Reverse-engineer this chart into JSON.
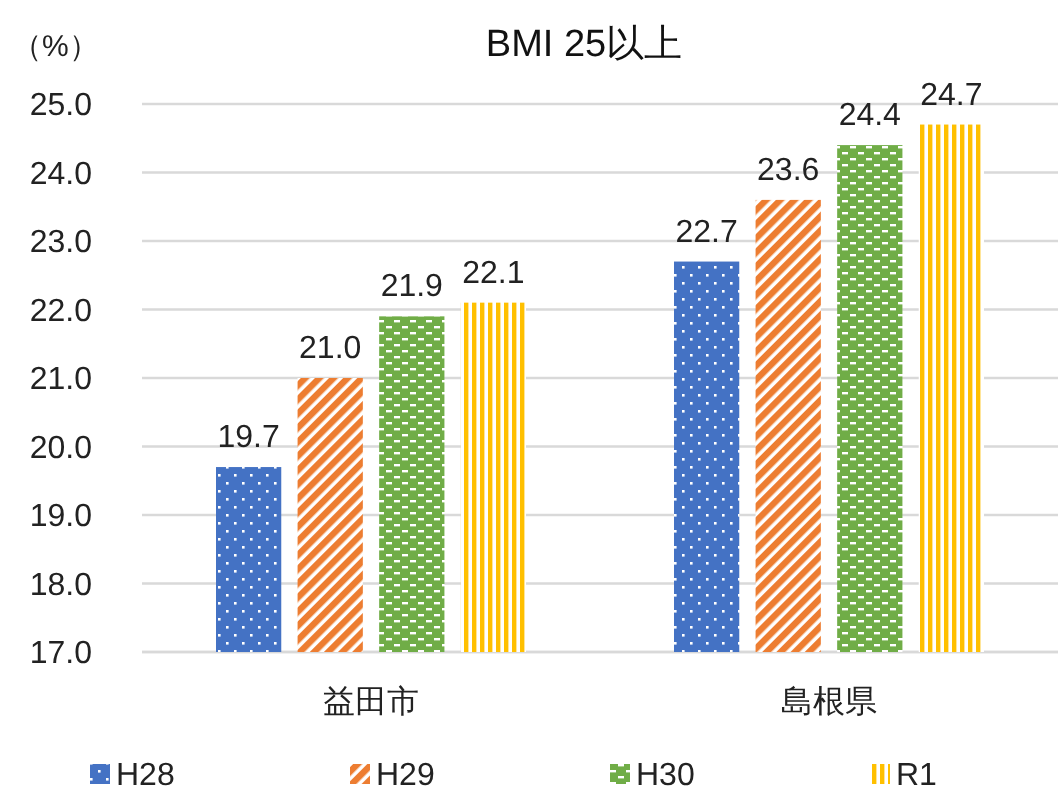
{
  "chart_data": {
    "type": "bar",
    "title": "BMI 25以上",
    "ylabel": "（%）",
    "categories": [
      "益田市",
      "島根県"
    ],
    "series": [
      {
        "name": "H28",
        "color": "#4472c4",
        "values": [
          19.7,
          22.7
        ],
        "value_labels": [
          "19.7",
          "22.7"
        ]
      },
      {
        "name": "H29",
        "color": "#ed7d31",
        "values": [
          21.0,
          23.6
        ],
        "value_labels": [
          "21.0",
          "23.6"
        ]
      },
      {
        "name": "H30",
        "color": "#70ad47",
        "values": [
          21.9,
          24.4
        ],
        "value_labels": [
          "21.9",
          "24.4"
        ]
      },
      {
        "name": "R1",
        "color": "#ffc000",
        "values": [
          22.1,
          24.7
        ],
        "value_labels": [
          "22.1",
          "24.7"
        ]
      }
    ],
    "ylim": [
      17,
      25
    ],
    "yticks": [
      {
        "value": 17,
        "label": "17.0"
      },
      {
        "value": 18,
        "label": "18.0"
      },
      {
        "value": 19,
        "label": "19.0"
      },
      {
        "value": 20,
        "label": "20.0"
      },
      {
        "value": 21,
        "label": "21.0"
      },
      {
        "value": 22,
        "label": "22.0"
      },
      {
        "value": 23,
        "label": "23.0"
      },
      {
        "value": 24,
        "label": "24.0"
      },
      {
        "value": 25,
        "label": "25.0"
      }
    ],
    "grid": "y",
    "legend": "bottom"
  }
}
